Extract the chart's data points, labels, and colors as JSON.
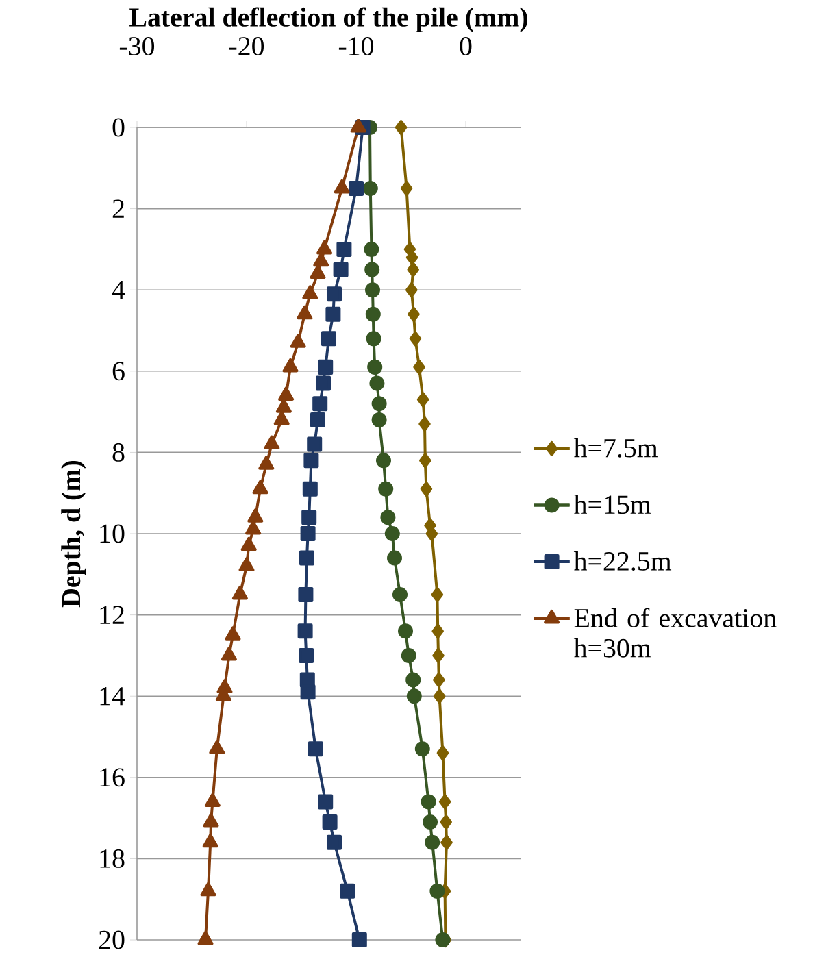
{
  "chart_data": {
    "type": "line",
    "xlabel": "Lateral deflection of the pile (mm)",
    "ylabel": "Depth, d (m)",
    "xlim": [
      -30,
      5
    ],
    "xticks": [
      -30,
      -20,
      -10,
      0
    ],
    "ylim": [
      20,
      0
    ],
    "yticks": [
      0,
      2,
      4,
      6,
      8,
      10,
      12,
      14,
      16,
      18,
      20
    ],
    "grid": "y",
    "legend": "right",
    "line_style": "solid",
    "series": [
      {
        "name": "h=7.5m",
        "color": "#7f6000",
        "marker": "diamond",
        "x": [
          -5.9,
          -5.4,
          -5.1,
          -4.9,
          -4.8,
          -4.95,
          -4.75,
          -4.6,
          -4.25,
          -3.9,
          -3.75,
          -3.7,
          -3.6,
          -3.25,
          -3.1,
          -2.6,
          -2.55,
          -2.5,
          -2.45,
          -2.4,
          -2.1,
          -1.9,
          -1.8,
          -1.75,
          -1.9,
          -1.85
        ],
        "values": [
          0,
          1.5,
          3.0,
          3.2,
          3.5,
          4.0,
          4.6,
          5.2,
          5.9,
          6.7,
          7.3,
          8.2,
          8.9,
          9.8,
          10.0,
          11.5,
          12.4,
          13.0,
          13.6,
          14.0,
          15.4,
          16.6,
          17.1,
          17.6,
          18.8,
          20.0
        ]
      },
      {
        "name": "h=15m",
        "color": "#375623",
        "marker": "circle",
        "x": [
          -8.75,
          -8.7,
          -8.6,
          -8.55,
          -8.5,
          -8.45,
          -8.4,
          -8.3,
          -8.1,
          -7.9,
          -7.9,
          -7.5,
          -7.3,
          -7.1,
          -6.7,
          -6.5,
          -6.0,
          -5.5,
          -5.2,
          -4.8,
          -4.7,
          -3.95,
          -3.4,
          -3.25,
          -3.05,
          -2.6,
          -2.1
        ],
        "values": [
          0,
          1.5,
          3.0,
          3.5,
          4.0,
          4.6,
          5.2,
          5.9,
          6.3,
          6.8,
          7.2,
          8.2,
          8.9,
          9.6,
          10.0,
          10.6,
          11.5,
          12.4,
          13.0,
          13.6,
          14.0,
          15.3,
          16.6,
          17.1,
          17.6,
          18.8,
          20.0
        ]
      },
      {
        "name": "h=22.5m",
        "color": "#1f3864",
        "marker": "square",
        "x": [
          -9.4,
          -10.0,
          -11.1,
          -11.4,
          -12.0,
          -12.1,
          -12.5,
          -12.8,
          -13.0,
          -13.3,
          -13.5,
          -13.8,
          -14.1,
          -14.2,
          -14.3,
          -14.4,
          -14.5,
          -14.6,
          -14.65,
          -14.55,
          -14.45,
          -14.4,
          -13.7,
          -12.8,
          -12.4,
          -12.0,
          -10.8,
          -9.7
        ],
        "values": [
          0,
          1.5,
          3.0,
          3.5,
          4.1,
          4.6,
          5.2,
          5.9,
          6.3,
          6.8,
          7.2,
          7.8,
          8.2,
          8.9,
          9.6,
          10.0,
          10.6,
          11.5,
          12.4,
          13.0,
          13.6,
          13.9,
          15.3,
          16.6,
          17.1,
          17.6,
          18.8,
          20.0
        ]
      },
      {
        "name": "End of excavation h=30m",
        "color": "#843c0c",
        "marker": "triangle",
        "x": [
          -9.8,
          -11.3,
          -12.9,
          -13.2,
          -13.5,
          -14.2,
          -14.7,
          -15.3,
          -16.0,
          -16.4,
          -16.6,
          -16.8,
          -17.7,
          -18.2,
          -18.75,
          -19.2,
          -19.4,
          -19.8,
          -20.0,
          -20.6,
          -21.25,
          -21.6,
          -22.0,
          -22.1,
          -22.7,
          -23.1,
          -23.25,
          -23.3,
          -23.5,
          -23.75
        ],
        "values": [
          0,
          1.5,
          3.0,
          3.3,
          3.6,
          4.1,
          4.6,
          5.3,
          5.9,
          6.6,
          6.9,
          7.2,
          7.8,
          8.3,
          8.9,
          9.6,
          9.9,
          10.3,
          10.8,
          11.5,
          12.5,
          13.0,
          13.8,
          14.0,
          15.3,
          16.6,
          17.1,
          17.6,
          18.8,
          20.0
        ]
      }
    ]
  }
}
